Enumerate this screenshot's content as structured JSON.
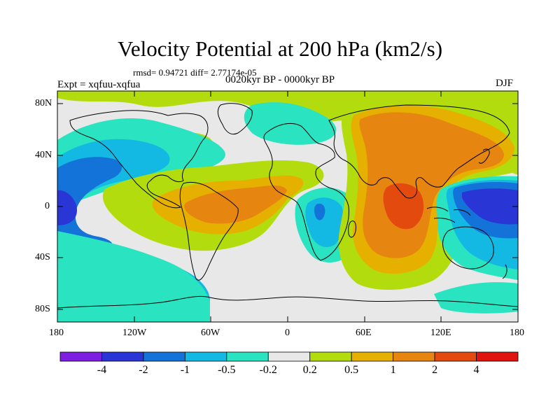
{
  "title": "Velocity Potential at 200 hPa (km2/s)",
  "stats_text": "rmsd= 0.94721 diff= 2.77174e-05",
  "expt_text": "Expt = xqfuu-xqfua",
  "period_text": "0020kyr BP - 0000kyr BP",
  "season_text": "DJF",
  "lat_labels": [
    "80N",
    "40N",
    "0",
    "40S",
    "80S"
  ],
  "lon_labels": [
    "180",
    "120W",
    "60W",
    "0",
    "60E",
    "120E",
    "180"
  ],
  "colorbar": {
    "labels": [
      "-4",
      "-2",
      "-1",
      "-0.5",
      "-0.2",
      "0.2",
      "0.5",
      "1",
      "2",
      "4"
    ],
    "colors": [
      "#7d1ee0",
      "#2a35d6",
      "#1473d8",
      "#13b9e2",
      "#29e3c1",
      "#e8e8e8",
      "#b3dc0e",
      "#e6b000",
      "#e68510",
      "#e24a0e",
      "#e0140f"
    ]
  },
  "colors": {
    "background_field": "#e8e8e8",
    "coast": "#000000"
  }
}
